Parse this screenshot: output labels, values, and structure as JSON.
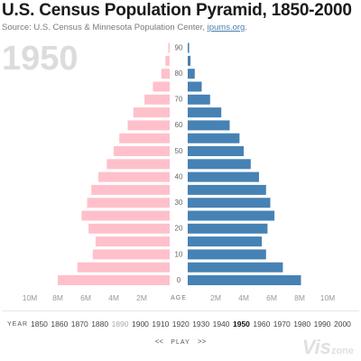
{
  "header": {
    "title": "U.S. Census Population Pyramid, 1850-2000",
    "source_prefix": "Source: U.S. Census & Minnesota Population Center, ",
    "source_link": "ipums.org",
    "source_suffix": "."
  },
  "current_year": "1950",
  "chart_data": {
    "type": "bar",
    "subtype": "population-pyramid",
    "year": 1950,
    "center_label": "AGE",
    "age_groups": [
      0,
      5,
      10,
      15,
      20,
      25,
      30,
      35,
      40,
      45,
      50,
      55,
      60,
      65,
      70,
      75,
      80,
      85,
      90
    ],
    "age_tick_labels": [
      "0",
      "10",
      "20",
      "30",
      "40",
      "50",
      "60",
      "70",
      "80",
      "90"
    ],
    "series": [
      {
        "side": "left",
        "color": "#ffc0cb",
        "values": [
          8.0,
          6.6,
          5.5,
          5.3,
          5.8,
          6.3,
          5.9,
          5.6,
          5.1,
          4.5,
          4.0,
          3.6,
          3.0,
          2.6,
          1.8,
          1.2,
          0.6,
          0.3,
          0.1
        ]
      },
      {
        "side": "right",
        "color": "#4682b4",
        "values": [
          8.1,
          6.8,
          5.6,
          5.3,
          5.7,
          6.2,
          5.9,
          5.6,
          5.1,
          4.5,
          4.0,
          3.7,
          3.0,
          2.4,
          1.6,
          1.0,
          0.5,
          0.2,
          0.1
        ]
      }
    ],
    "xlim": [
      0,
      10
    ],
    "x_tick_labels": [
      "10M",
      "8M",
      "6M",
      "4M",
      "2M",
      "",
      "2M",
      "4M",
      "6M",
      "8M",
      "10M"
    ],
    "x_ticks": [
      10,
      8,
      6,
      4,
      2,
      0,
      2,
      4,
      6,
      8,
      10
    ],
    "unit": "millions"
  },
  "timeline": {
    "label": "YEAR",
    "years": [
      "1850",
      "1860",
      "1870",
      "1880",
      "1890",
      "1900",
      "1910",
      "1920",
      "1930",
      "1940",
      "1950",
      "1960",
      "1970",
      "1980",
      "1990",
      "2000"
    ],
    "active": "1950",
    "dimmed": "1890"
  },
  "controls": {
    "prev": "<<",
    "play": "PLAY",
    "next": ">>"
  },
  "watermark": {
    "main": "Vis",
    "sub": "zone"
  }
}
